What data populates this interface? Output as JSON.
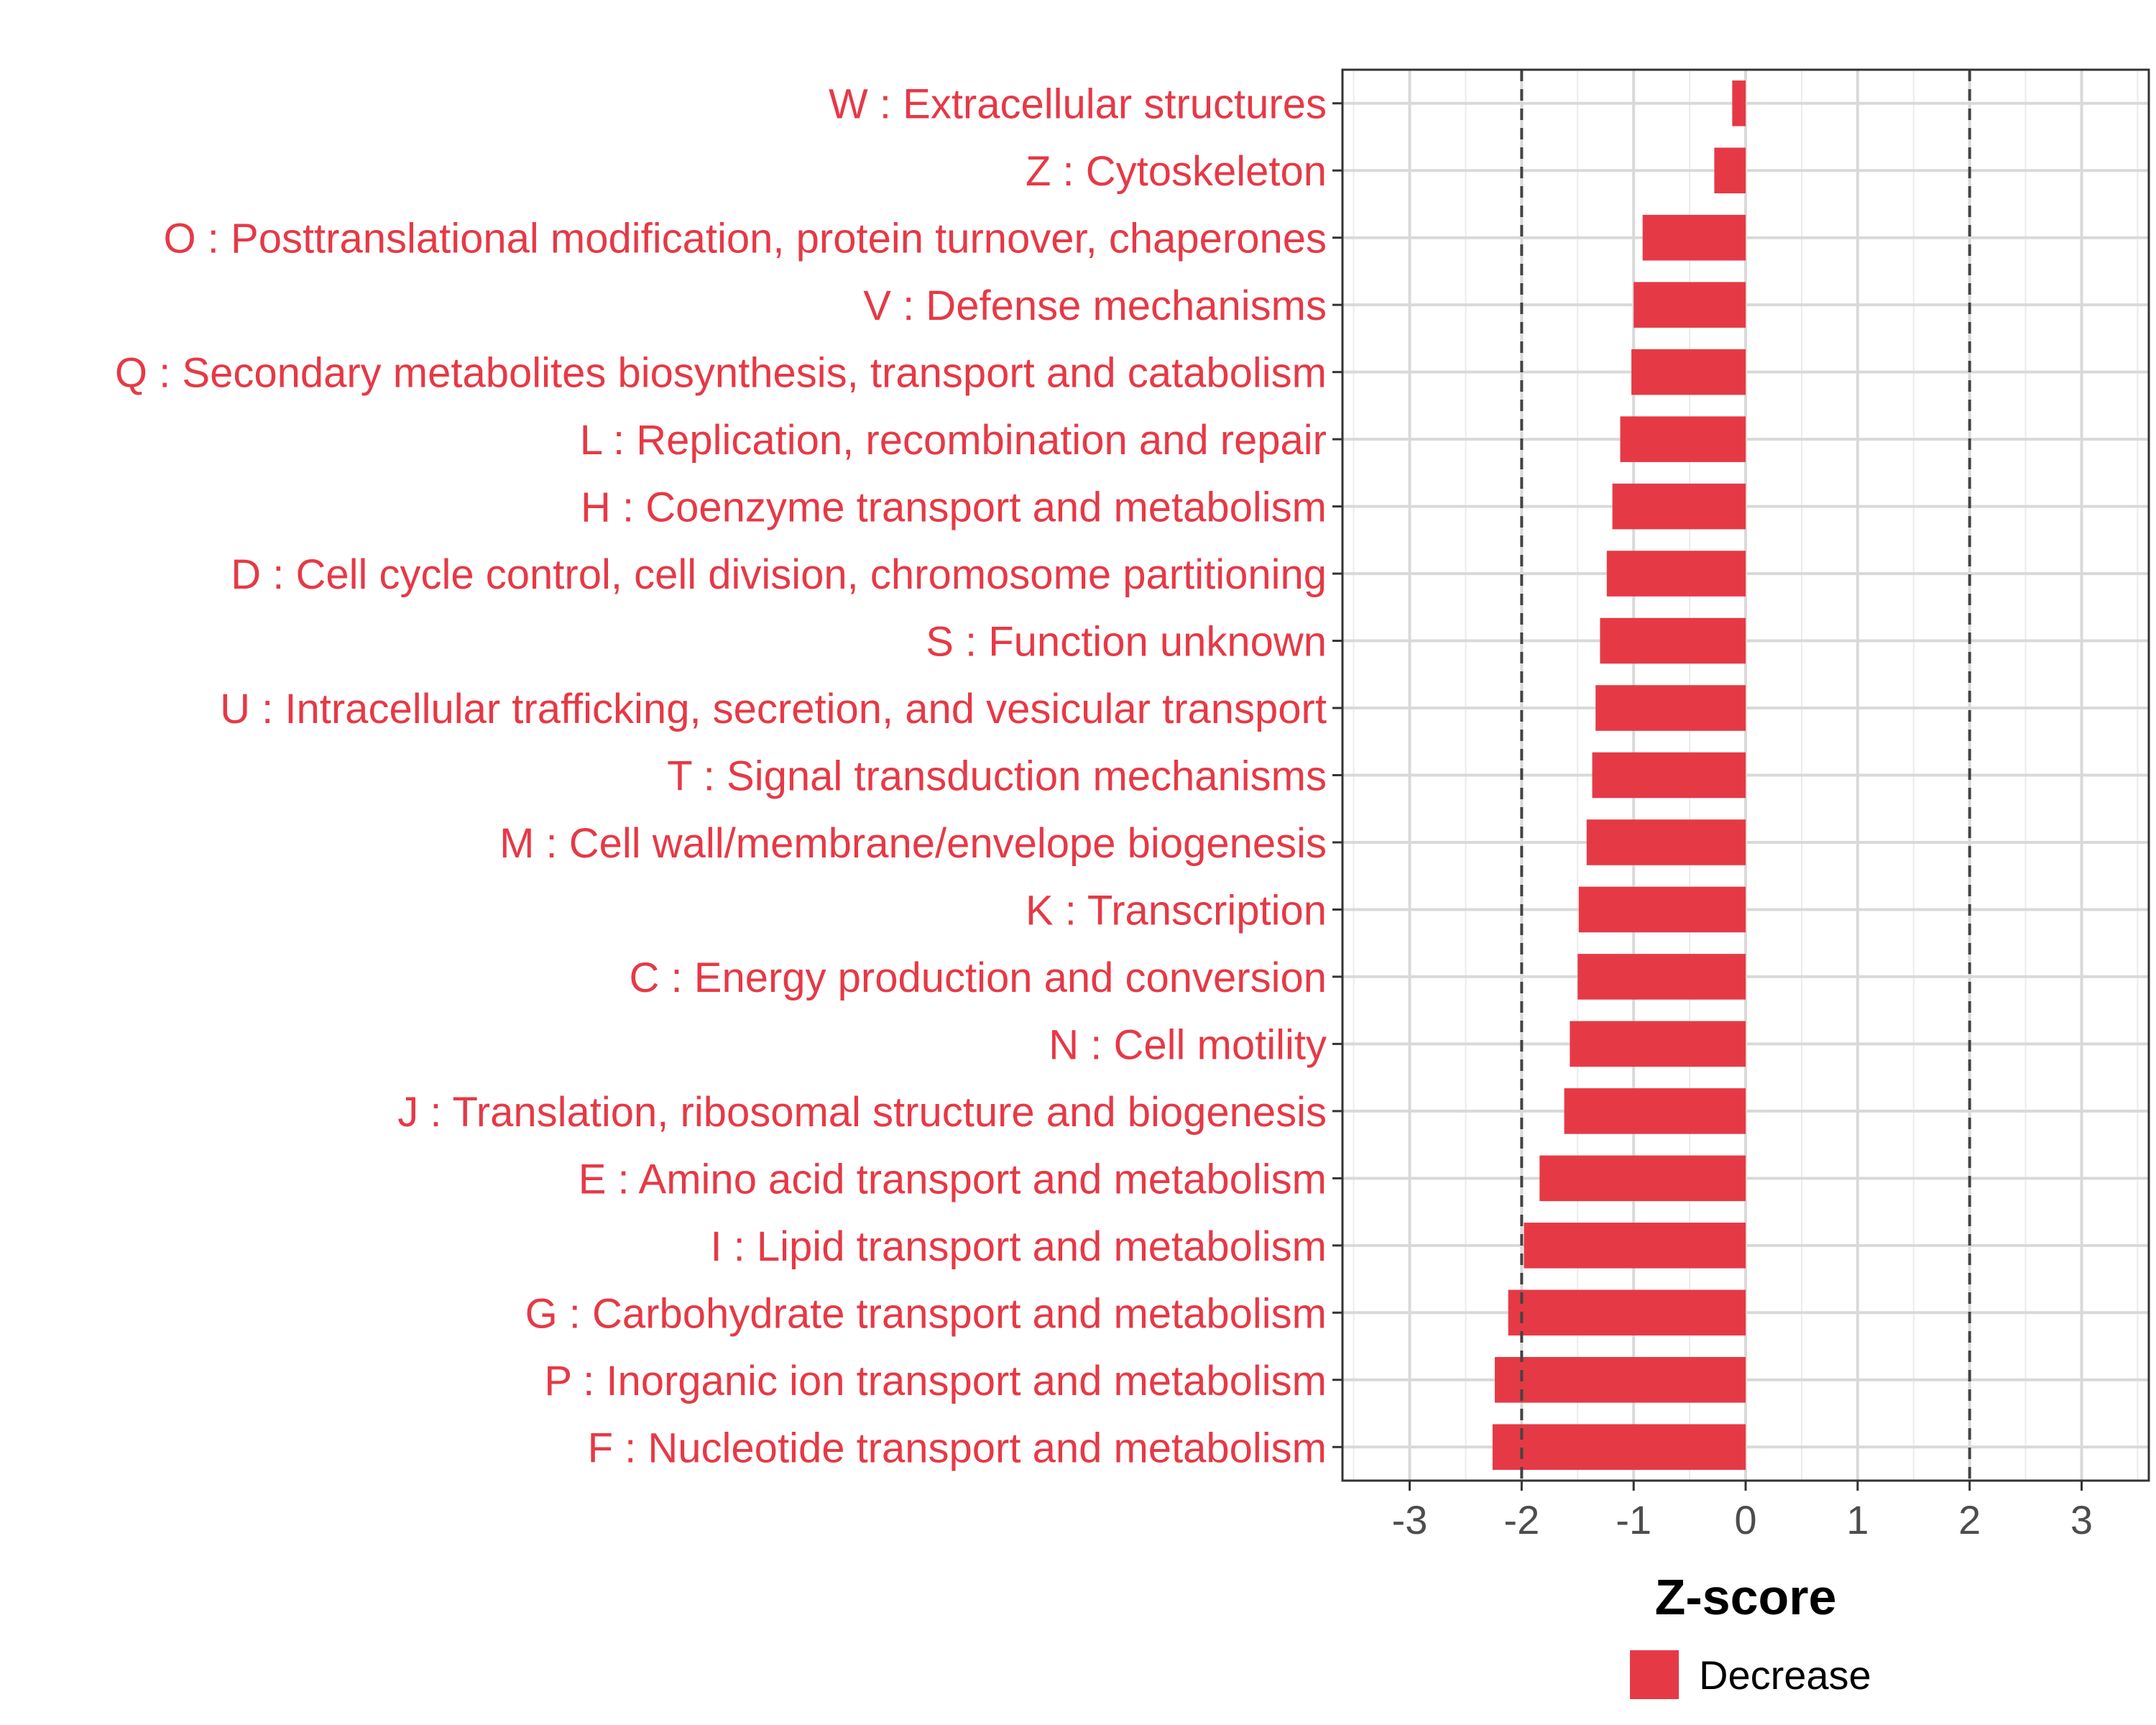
{
  "chart_data": {
    "type": "bar",
    "orientation": "horizontal",
    "title": "",
    "xlabel": "Z-score",
    "ylabel": "",
    "xlim": [
      -3.6,
      3.6
    ],
    "x_ticks": [
      -3,
      -2,
      -1,
      0,
      1,
      2,
      3
    ],
    "x_tick_labels": [
      "-3",
      "-2",
      "-1",
      "0",
      "1",
      "2",
      "3"
    ],
    "reference_lines": [
      -2,
      2
    ],
    "grid": true,
    "categories": [
      "W : Extracellular structures",
      "Z : Cytoskeleton",
      "O : Posttranslational modification, protein turnover, chaperones",
      "V : Defense mechanisms",
      "Q : Secondary metabolites biosynthesis, transport and catabolism",
      "L : Replication, recombination and repair",
      "H : Coenzyme transport and metabolism",
      "D : Cell cycle control, cell division, chromosome partitioning",
      "S : Function unknown",
      "U : Intracellular trafficking, secretion, and vesicular transport",
      "T : Signal transduction mechanisms",
      "M : Cell wall/membrane/envelope biogenesis",
      "K : Transcription",
      "C : Energy production and conversion",
      "N : Cell motility",
      "J : Translation, ribosomal structure and biogenesis",
      "E : Amino acid transport and metabolism",
      "I : Lipid transport and metabolism",
      "G : Carbohydrate transport and metabolism",
      "P : Inorganic ion transport and metabolism",
      "F : Nucleotide transport and metabolism"
    ],
    "series": [
      {
        "name": "Decrease",
        "color": "#e63946",
        "values": [
          -0.12,
          -0.28,
          -0.92,
          -1.0,
          -1.02,
          -1.12,
          -1.19,
          -1.24,
          -1.3,
          -1.34,
          -1.37,
          -1.42,
          -1.49,
          -1.5,
          -1.57,
          -1.62,
          -1.84,
          -1.98,
          -2.12,
          -2.24,
          -2.26
        ]
      }
    ],
    "legend": {
      "position": "bottom",
      "entries": [
        {
          "label": "Decrease",
          "color": "#e63946"
        }
      ]
    }
  }
}
